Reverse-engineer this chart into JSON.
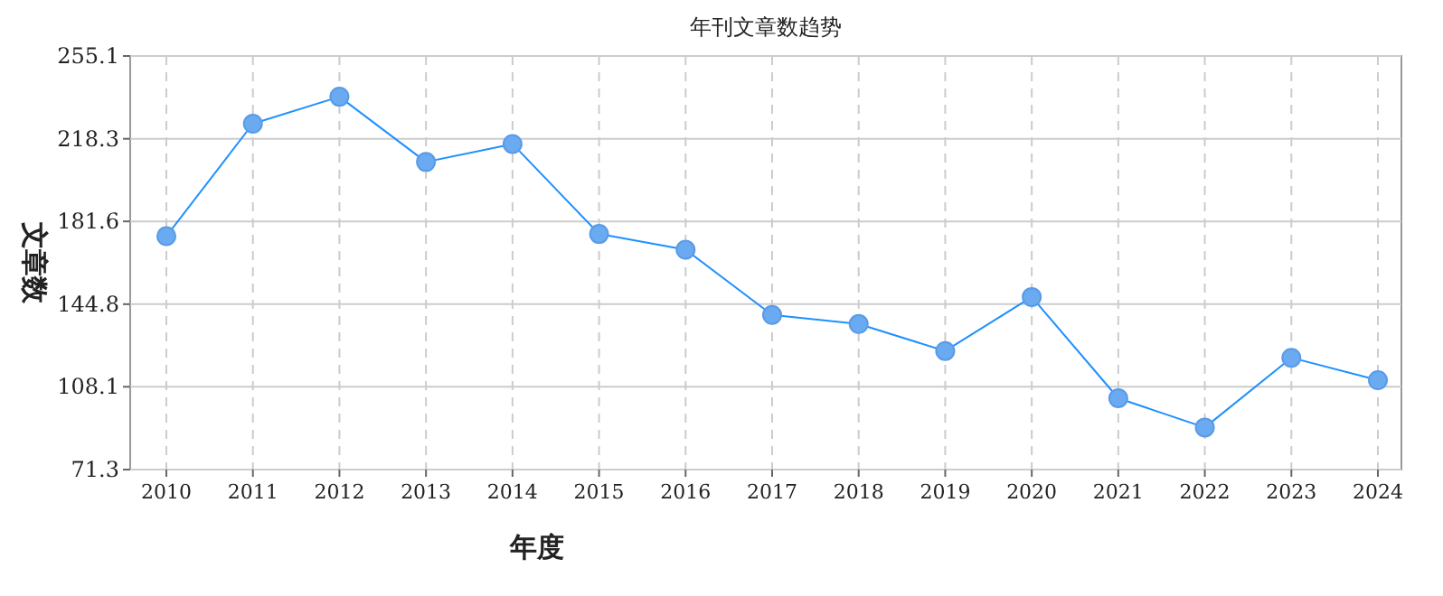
{
  "chart_data": {
    "type": "line",
    "title": "年刊文章数趋势",
    "xlabel": "年度",
    "ylabel": "文章数",
    "categories": [
      "2010",
      "2011",
      "2012",
      "2013",
      "2014",
      "2015",
      "2016",
      "2017",
      "2018",
      "2019",
      "2020",
      "2021",
      "2022",
      "2023",
      "2024"
    ],
    "series": [
      {
        "color": "#1e90ff",
        "values": [
          175,
          225,
          237,
          208,
          216,
          176,
          169,
          140,
          136,
          124,
          148,
          103,
          90,
          121,
          111
        ]
      }
    ],
    "ylim": [
      71.3,
      255.1
    ],
    "yticks": [
      71.3,
      108.1,
      144.8,
      181.6,
      218.3,
      255.1
    ],
    "grid": true,
    "marker": "circle",
    "line_style": "solid"
  }
}
